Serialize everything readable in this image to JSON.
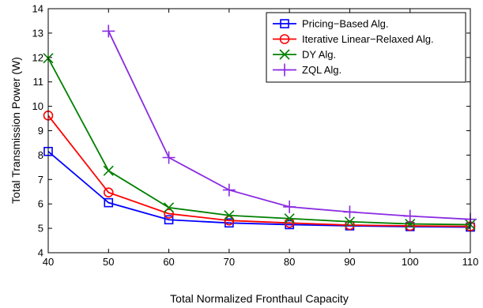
{
  "chart_data": {
    "type": "line",
    "title": "",
    "xlabel": "Total Normalized Fronthaul Capacity",
    "ylabel": "Total Transmission Power (W)",
    "xlim": [
      40,
      110
    ],
    "ylim": [
      4,
      14
    ],
    "xticks": [
      40,
      50,
      60,
      70,
      80,
      90,
      100,
      110
    ],
    "yticks": [
      4,
      5,
      6,
      7,
      8,
      9,
      10,
      11,
      12,
      13,
      14
    ],
    "grid": false,
    "legend_position": "top-right",
    "series": [
      {
        "name": "Pricing−Based Alg.",
        "color": "#0000ff",
        "marker": "square",
        "x": [
          40,
          50,
          60,
          70,
          80,
          90,
          100,
          110
        ],
        "values": [
          8.15,
          6.05,
          5.35,
          5.22,
          5.15,
          5.1,
          5.07,
          5.05
        ]
      },
      {
        "name": "Iterative Linear−Relaxed Alg.",
        "color": "#ff0000",
        "marker": "circle",
        "x": [
          40,
          50,
          60,
          70,
          80,
          90,
          100,
          110
        ],
        "values": [
          9.62,
          6.47,
          5.6,
          5.32,
          5.22,
          5.13,
          5.1,
          5.08
        ]
      },
      {
        "name": "DY Alg.",
        "color": "#008000",
        "marker": "x",
        "x": [
          40,
          50,
          60,
          70,
          80,
          90,
          100,
          110
        ],
        "values": [
          11.97,
          7.36,
          5.85,
          5.53,
          5.4,
          5.27,
          5.18,
          5.15
        ]
      },
      {
        "name": "ZQL Alg.",
        "color": "#8a2be2",
        "marker": "plus",
        "x": [
          50,
          60,
          70,
          80,
          90,
          100,
          110
        ],
        "values": [
          13.08,
          7.9,
          6.57,
          5.88,
          5.67,
          5.5,
          5.37
        ]
      }
    ]
  }
}
